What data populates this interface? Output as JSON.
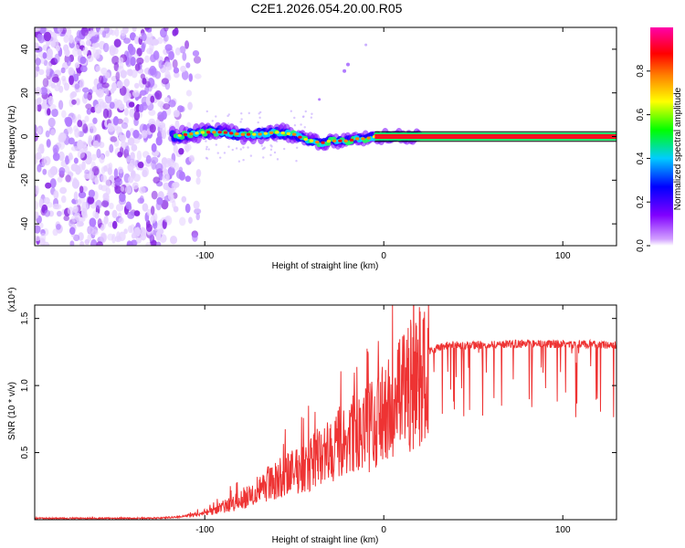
{
  "title": "C2E1.2026.054.20.00.R05",
  "chart_data": [
    {
      "type": "heatmap",
      "xlabel": "Height of straight line (km)",
      "ylabel": "Frequency (Hz)",
      "xlim": [
        -195,
        130
      ],
      "ylim": [
        -50,
        50
      ],
      "xticks": [
        -100,
        0,
        100
      ],
      "xticklabels": [
        "-100",
        "0",
        "100"
      ],
      "yticks": [
        -40,
        -20,
        0,
        20,
        40
      ],
      "yticklabels": [
        "-40",
        "-20",
        "0",
        "20",
        "40"
      ],
      "colorbar": {
        "label": "Normalized spectral amplitude",
        "range": [
          0,
          1
        ],
        "ticks": [
          0.0,
          0.2,
          0.4,
          0.6,
          0.8
        ],
        "ticklabels": [
          "0.0",
          "0.2",
          "0.4",
          "0.6",
          "0.8"
        ],
        "colormap": [
          "#ffffff",
          "#8000ff",
          "#0000ff",
          "#00ffff",
          "#00ff00",
          "#ffff00",
          "#ff8000",
          "#ff0000",
          "#ff00ff"
        ]
      },
      "ridge": {
        "x": [
          -118,
          -110,
          -100,
          -90,
          -80,
          -70,
          -60,
          -50,
          -45,
          -40,
          -35,
          -30,
          -25,
          -20,
          -15,
          -10,
          -5,
          0,
          5,
          10,
          15,
          20,
          130
        ],
        "y": [
          0,
          1,
          2,
          2,
          1,
          1,
          2,
          1,
          -1,
          -2,
          -3,
          -2,
          -2,
          -2,
          -1,
          -1,
          0,
          0,
          0,
          0,
          0,
          0,
          0
        ]
      },
      "noise_region_x": [
        -195,
        -103
      ]
    },
    {
      "type": "line",
      "xlabel": "Height of straight line (km)",
      "ylabel": "SNR (10 * v/v)",
      "multiplier": "(x10⁴)",
      "xlim": [
        -195,
        130
      ],
      "ylim": [
        0,
        1.6
      ],
      "xticks": [
        -100,
        0,
        100
      ],
      "xticklabels": [
        "-100",
        "0",
        "100"
      ],
      "yticks": [
        0.5,
        1.0,
        1.5
      ],
      "yticklabels": [
        "0.5",
        "1.0",
        "1.5"
      ],
      "series": [
        {
          "name": "SNR",
          "color": "#ee3333",
          "x": [
            -195,
            -130,
            -115,
            -105,
            -95,
            -85,
            -75,
            -65,
            -55,
            -45,
            -35,
            -25,
            -15,
            -5,
            5,
            15,
            25,
            35,
            50,
            70,
            90,
            110,
            130
          ],
          "y": [
            0.01,
            0.01,
            0.02,
            0.04,
            0.08,
            0.13,
            0.2,
            0.3,
            0.36,
            0.42,
            0.52,
            0.62,
            0.7,
            0.78,
            0.92,
            1.1,
            1.26,
            1.3,
            1.3,
            1.31,
            1.31,
            1.31,
            1.3
          ]
        }
      ]
    }
  ]
}
